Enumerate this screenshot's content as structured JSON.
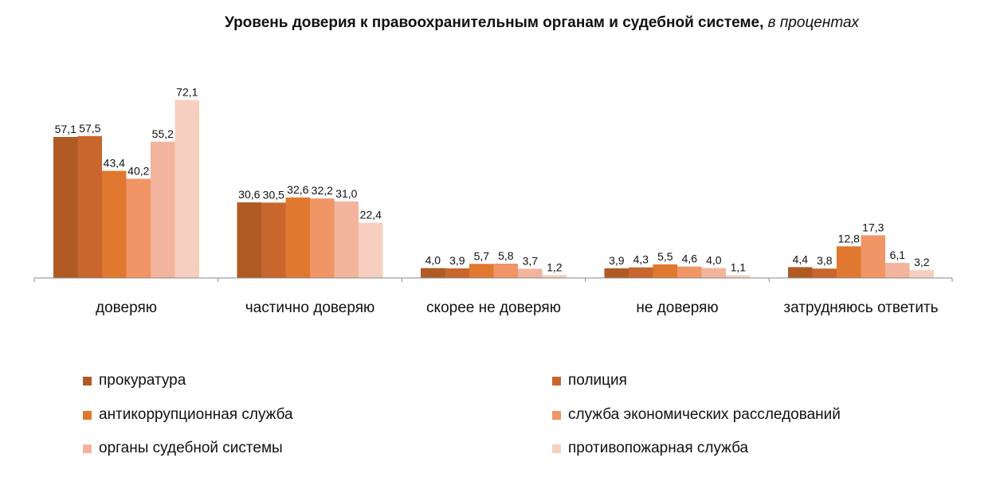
{
  "chart_data": {
    "type": "bar",
    "title": "Уровень доверия к правоохранительным органам и судебной системе,",
    "subtitle": "в процентах",
    "categories": [
      "доверяю",
      "частично доверяю",
      "скорее не доверяю",
      "не доверяю",
      "затрудняюсь ответить"
    ],
    "series": [
      {
        "name": "прокуратура",
        "color": "#b05a24",
        "values": [
          57.1,
          30.6,
          4.0,
          3.9,
          4.4
        ]
      },
      {
        "name": "полиция",
        "color": "#c8662e",
        "values": [
          57.5,
          30.5,
          3.9,
          4.3,
          3.8
        ]
      },
      {
        "name": "антикоррупционная служба",
        "color": "#e0782f",
        "values": [
          43.4,
          32.6,
          5.7,
          5.5,
          12.8
        ]
      },
      {
        "name": "служба экономических расследований",
        "color": "#ef9566",
        "values": [
          40.2,
          32.2,
          5.8,
          4.6,
          17.3
        ]
      },
      {
        "name": "органы судебной системы",
        "color": "#f2b49c",
        "values": [
          55.2,
          31.0,
          3.7,
          4.0,
          6.1
        ]
      },
      {
        "name": "противопожарная служба",
        "color": "#f7cfc0",
        "values": [
          72.1,
          22.4,
          1.2,
          1.1,
          3.2
        ]
      }
    ],
    "value_labels": [
      [
        "57,1",
        "30,6",
        "4,0",
        "3,9",
        "4,4"
      ],
      [
        "57,5",
        "30,5",
        "3,9",
        "4,3",
        "3,8"
      ],
      [
        "43,4",
        "32,6",
        "5,7",
        "5,5",
        "12,8"
      ],
      [
        "40,2",
        "32,2",
        "5,8",
        "4,6",
        "17,3"
      ],
      [
        "55,2",
        "31,0",
        "3,7",
        "4,0",
        "6,1"
      ],
      [
        "72,1",
        "22,4",
        "1,2",
        "1,1",
        "3,2"
      ]
    ],
    "ylim": [
      0,
      75
    ],
    "grid": false,
    "y_axis_visible": false,
    "legend_placement": "bottom"
  }
}
